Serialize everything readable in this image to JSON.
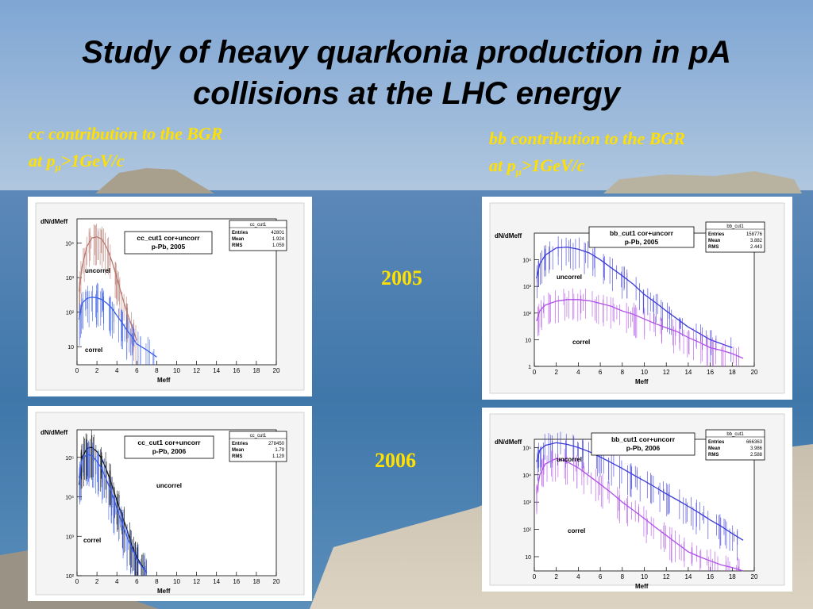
{
  "title": {
    "line1": "Study of heavy quarkonia production in pA",
    "line2": "collisions at  the LHC energy"
  },
  "captions": {
    "cc": {
      "line1": "cc contribution to the BGR",
      "line2_prefix": "at p",
      "sub": "μ",
      "line2_suffix": ">1GeV/c"
    },
    "bb": {
      "line1": "bb contribution to the BGR",
      "line2_prefix": "at p",
      "sub": "μ",
      "line2_suffix": ">1GeV/c"
    }
  },
  "years": [
    "2005",
    "2006"
  ],
  "colors": {
    "caption_text": "#ffe000",
    "cc_uncorrel_2005": "#b87870",
    "cc_correl": "#3a5ee8",
    "cc_uncorrel_2006": "#111111",
    "bb_uncorrel": "#3a3ad8",
    "bb_correl": "#b050e8"
  },
  "chart_data": [
    {
      "type": "line",
      "panel": "cc-2005",
      "title": "cc_cut1 cor+uncorr",
      "subtitle": "p-Pb, 2005",
      "stats": {
        "name": "cc_cut1",
        "rows": [
          [
            "Entries",
            "42801"
          ],
          [
            "Mean",
            "1.924"
          ],
          [
            "RMS",
            "1.059"
          ]
        ]
      },
      "xlabel": "Meff",
      "ylabel": "dN/dMeff",
      "xlim": [
        0,
        20
      ],
      "ylog": true,
      "ylim": [
        3,
        50000
      ],
      "xticks": [
        "0",
        "2",
        "4",
        "6",
        "8",
        "10",
        "12",
        "14",
        "16",
        "18",
        "20"
      ],
      "yticks": [
        {
          "v": 10,
          "label": "10"
        },
        {
          "v": 100,
          "label": "10²"
        },
        {
          "v": 1000,
          "label": "10³"
        },
        {
          "v": 10000,
          "label": "10⁴"
        }
      ],
      "annotations": [
        "uncorrel",
        "correl"
      ],
      "series": [
        {
          "kind": "uncorrel",
          "x": [
            0.2,
            0.5,
            1.0,
            1.5,
            2.0,
            2.5,
            3.0,
            3.5,
            4.0,
            4.5,
            5.0,
            5.5,
            6.0
          ],
          "y": [
            400,
            2000,
            8000,
            14000,
            15000,
            13000,
            7000,
            3000,
            1000,
            300,
            100,
            40,
            15
          ]
        },
        {
          "kind": "correl",
          "x": [
            0.2,
            0.5,
            1.0,
            1.5,
            2.0,
            2.5,
            3.0,
            3.5,
            4.0,
            4.5,
            5.0,
            5.5,
            6.0,
            7.0,
            8.0
          ],
          "y": [
            60,
            180,
            250,
            270,
            260,
            230,
            180,
            130,
            80,
            50,
            30,
            20,
            12,
            8,
            5
          ]
        }
      ]
    },
    {
      "type": "line",
      "panel": "bb-2005",
      "title": "bb_cut1 cor+uncorr",
      "subtitle": "p-Pb, 2005",
      "stats": {
        "name": "bb_cut1",
        "rows": [
          [
            "Entries",
            "158776"
          ],
          [
            "Mean",
            "3.882"
          ],
          [
            "RMS",
            "2.443"
          ]
        ]
      },
      "xlabel": "Meff",
      "ylabel": "dN/dMeff",
      "xlim": [
        0,
        20
      ],
      "ylog": true,
      "ylim": [
        1,
        100000
      ],
      "xticks": [
        "0",
        "2",
        "4",
        "6",
        "8",
        "10",
        "12",
        "14",
        "16",
        "18",
        "20"
      ],
      "yticks": [
        {
          "v": 1,
          "label": "1"
        },
        {
          "v": 10,
          "label": "10"
        },
        {
          "v": 100,
          "label": "10²"
        },
        {
          "v": 1000,
          "label": "10³"
        },
        {
          "v": 10000,
          "label": "10⁴"
        }
      ],
      "annotations": [
        "uncorrel",
        "correl"
      ],
      "series": [
        {
          "kind": "uncorrel",
          "x": [
            0.2,
            0.5,
            1,
            2,
            3,
            4,
            5,
            6,
            7,
            8,
            9,
            10,
            11,
            12,
            13,
            14,
            16,
            18
          ],
          "y": [
            2000,
            7000,
            15000,
            28000,
            30000,
            25000,
            18000,
            10000,
            5000,
            2500,
            1200,
            500,
            250,
            120,
            60,
            30,
            10,
            5
          ]
        },
        {
          "kind": "correl",
          "x": [
            0.2,
            0.5,
            1,
            2,
            3,
            4,
            5,
            6,
            7,
            8,
            9,
            10,
            11,
            12,
            13,
            14,
            15,
            16,
            17,
            18,
            19
          ],
          "y": [
            50,
            120,
            200,
            280,
            320,
            320,
            290,
            230,
            180,
            120,
            90,
            60,
            40,
            28,
            20,
            12,
            8,
            5,
            4,
            3,
            2
          ]
        }
      ]
    },
    {
      "type": "line",
      "panel": "cc-2006",
      "title": "cc_cut1 cor+uncorr",
      "subtitle": "p-Pb, 2006",
      "stats": {
        "name": "cc_cut1",
        "rows": [
          [
            "Entries",
            "278450"
          ],
          [
            "Mean",
            "1.79"
          ],
          [
            "RMS",
            "1.129"
          ]
        ]
      },
      "xlabel": "Meff",
      "ylabel": "dN/dMeff",
      "xlim": [
        0,
        20
      ],
      "ylog": true,
      "ylim": [
        100,
        500000
      ],
      "xticks": [
        "0",
        "2",
        "4",
        "6",
        "8",
        "10",
        "12",
        "14",
        "16",
        "18",
        "20"
      ],
      "yticks": [
        {
          "v": 100,
          "label": "10²"
        },
        {
          "v": 1000,
          "label": "10³"
        },
        {
          "v": 10000,
          "label": "10⁴"
        },
        {
          "v": 100000,
          "label": "10⁵"
        }
      ],
      "annotations": [
        "uncorrel",
        "correl"
      ],
      "series": [
        {
          "kind": "uncorrel",
          "x": [
            0.2,
            0.5,
            1.0,
            1.5,
            2.0,
            2.5,
            3.0,
            3.5,
            4.0,
            4.5,
            5.0,
            5.5,
            6.0,
            6.5,
            7.0
          ],
          "y": [
            20000,
            100000,
            170000,
            180000,
            140000,
            90000,
            45000,
            20000,
            8000,
            3500,
            1500,
            600,
            300,
            180,
            120
          ]
        },
        {
          "kind": "correl",
          "x": [
            0.2,
            0.5,
            1.0,
            1.5,
            2.0,
            2.5,
            3.0,
            3.5,
            4.0,
            4.5,
            5.0,
            5.5,
            6.0,
            6.5,
            7.0
          ],
          "y": [
            30000,
            90000,
            120000,
            110000,
            80000,
            50000,
            25000,
            12000,
            5000,
            2200,
            1000,
            500,
            260,
            170,
            120
          ]
        }
      ]
    },
    {
      "type": "line",
      "panel": "bb-2006",
      "title": "bb_cut1 cor+uncorr",
      "subtitle": "p-Pb, 2006",
      "stats": {
        "name": "bb_cut1",
        "rows": [
          [
            "Entries",
            "666363"
          ],
          [
            "Mean",
            "3.986"
          ],
          [
            "RMS",
            "2.588"
          ]
        ]
      },
      "xlabel": "Meff",
      "ylabel": "dN/dMeff",
      "xlim": [
        0,
        20
      ],
      "ylog": true,
      "ylim": [
        3,
        200000
      ],
      "xticks": [
        "0",
        "2",
        "4",
        "6",
        "8",
        "10",
        "12",
        "14",
        "16",
        "18",
        "20"
      ],
      "yticks": [
        {
          "v": 10,
          "label": "10"
        },
        {
          "v": 100,
          "label": "10²"
        },
        {
          "v": 1000,
          "label": "10³"
        },
        {
          "v": 10000,
          "label": "10⁴"
        },
        {
          "v": 100000,
          "label": "10⁵"
        }
      ],
      "annotations": [
        "uncorrel",
        "correl"
      ],
      "series": [
        {
          "kind": "uncorrel",
          "x": [
            0.2,
            0.5,
            1,
            2,
            3,
            4,
            5,
            6,
            7,
            8,
            9,
            10,
            11,
            12,
            13,
            14,
            15,
            16,
            17,
            18,
            19
          ],
          "y": [
            30000,
            80000,
            120000,
            150000,
            130000,
            100000,
            70000,
            45000,
            28000,
            17000,
            10000,
            6000,
            3500,
            2000,
            1200,
            700,
            400,
            220,
            130,
            70,
            40
          ]
        },
        {
          "kind": "correl",
          "x": [
            0.2,
            0.5,
            1,
            2,
            3,
            4,
            5,
            6,
            7,
            8,
            9,
            10,
            11,
            12,
            13,
            14,
            15,
            16,
            17,
            18,
            19
          ],
          "y": [
            2000,
            10000,
            25000,
            40000,
            30000,
            18000,
            9000,
            4500,
            2200,
            1000,
            500,
            250,
            120,
            60,
            30,
            15,
            10,
            7,
            5,
            4,
            3
          ]
        }
      ]
    }
  ]
}
